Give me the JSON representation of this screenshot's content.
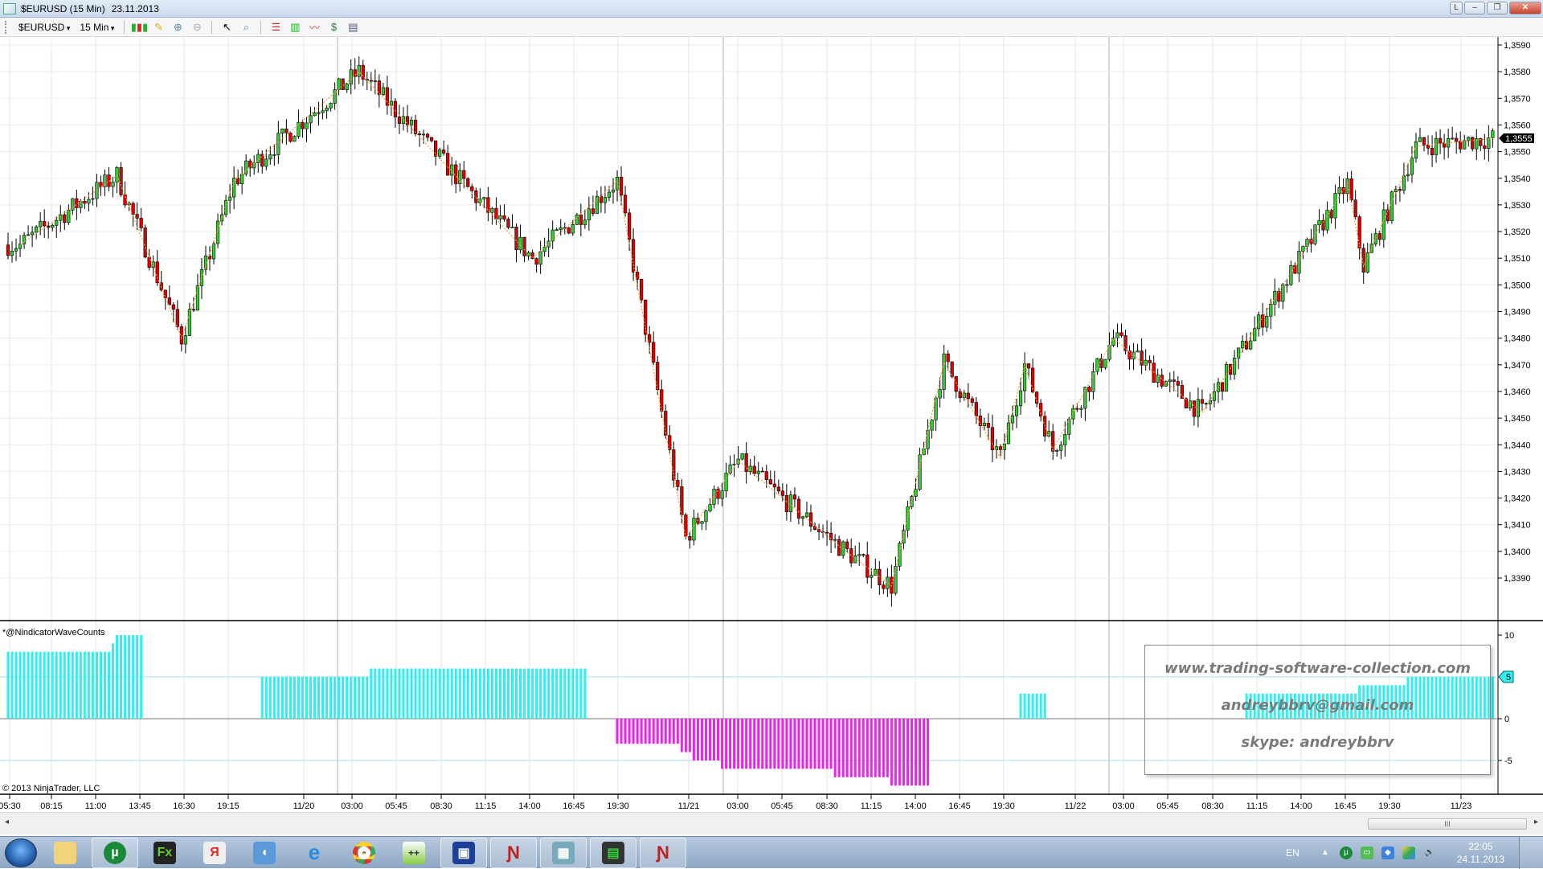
{
  "window": {
    "title": "$EURUSD (15 Min)",
    "date": "23.11.2013",
    "buttons": {
      "l": "L",
      "minimize": "‒",
      "restore": "❐",
      "close": "✕"
    }
  },
  "toolbar": {
    "instrument": "$EURUSD",
    "interval": "15 Min"
  },
  "price_chart": {
    "y_ticks": [
      "1,3590",
      "1,3580",
      "1,3570",
      "1,3560",
      "1,3550",
      "1,3540",
      "1,3530",
      "1,3520",
      "1,3510",
      "1,3500",
      "1,3490",
      "1,3480",
      "1,3470",
      "1,3460",
      "1,3450",
      "1,3440",
      "1,3430",
      "1,3420",
      "1,3410",
      "1,3400",
      "1,3390"
    ],
    "ylim": [
      1.339,
      1.359
    ],
    "last_price": "1,3555",
    "last_price_value": 1.3555,
    "bar_count": 369,
    "zigzag_pivots": [
      [
        3,
        1.3515
      ],
      [
        27,
        1.3541
      ],
      [
        43,
        1.348
      ],
      [
        56,
        1.3539
      ],
      [
        87,
        1.358
      ],
      [
        130,
        1.351
      ],
      [
        151,
        1.3539
      ],
      [
        168,
        1.3405
      ],
      [
        181,
        1.3434
      ],
      [
        206,
        1.3402
      ],
      [
        219,
        1.3387
      ],
      [
        232,
        1.3471
      ],
      [
        246,
        1.3435
      ],
      [
        252,
        1.347
      ],
      [
        259,
        1.3438
      ],
      [
        274,
        1.348
      ],
      [
        296,
        1.3452
      ],
      [
        332,
        1.3538
      ],
      [
        336,
        1.3507
      ],
      [
        349,
        1.3552
      ],
      [
        368,
        1.3555
      ]
    ],
    "colors": {
      "up": "#33cc33",
      "down": "#e00000",
      "zigzag": "#f0a040"
    }
  },
  "indicator": {
    "name": "*@NindicatorWaveCounts",
    "y_ticks": [
      "10",
      "0",
      "-5"
    ],
    "ylim": [
      -9,
      11
    ],
    "marker": "5",
    "runs": [
      [
        0,
        26,
        8
      ],
      [
        26,
        27,
        9
      ],
      [
        27,
        34,
        10
      ],
      [
        34,
        63,
        0
      ],
      [
        63,
        90,
        5
      ],
      [
        90,
        144,
        6
      ],
      [
        144,
        151,
        0
      ],
      [
        151,
        167,
        -3
      ],
      [
        167,
        170,
        -4
      ],
      [
        170,
        177,
        -5
      ],
      [
        177,
        205,
        -6
      ],
      [
        205,
        219,
        -7
      ],
      [
        219,
        229,
        -8
      ],
      [
        229,
        251,
        0
      ],
      [
        251,
        258,
        3
      ],
      [
        258,
        307,
        0
      ],
      [
        307,
        335,
        3
      ],
      [
        335,
        347,
        4
      ],
      [
        347,
        369,
        5
      ]
    ],
    "colors": {
      "positive": "#33eeee",
      "negative": "#ee22ee"
    }
  },
  "x_axis": {
    "labels": [
      "05:30",
      "08:15",
      "11:00",
      "13:45",
      "16:30",
      "19:15",
      "11/20",
      "03:00",
      "05:45",
      "08:30",
      "11:15",
      "14:00",
      "16:45",
      "19:30",
      "11/21",
      "03:00",
      "05:45",
      "08:30",
      "11:15",
      "14:00",
      "16:45",
      "19:30",
      "11/22",
      "03:00",
      "05:45",
      "08:30",
      "11:15",
      "14:00",
      "16:45",
      "19:30",
      "11/23"
    ]
  },
  "copyright": "© 2013 NinjaTrader, LLC",
  "watermark": {
    "site": "www.trading-software-collection.com",
    "email": "andreybbrv@gmail.com",
    "skype": "skype: andreybbrv"
  },
  "scrollbar": {
    "thumb_grip": "III"
  },
  "taskbar": {
    "apps": [
      "explorer",
      "utorrent",
      "forex-app",
      "yandex",
      "sound-app",
      "internet-explorer",
      "chrome",
      "notepad-plus",
      "save-64",
      "ninjatrader",
      "network-monitor",
      "trading-terminal",
      "ninjatrader-2"
    ],
    "language": "EN",
    "time": "22:05",
    "date": "24.11.2013"
  }
}
